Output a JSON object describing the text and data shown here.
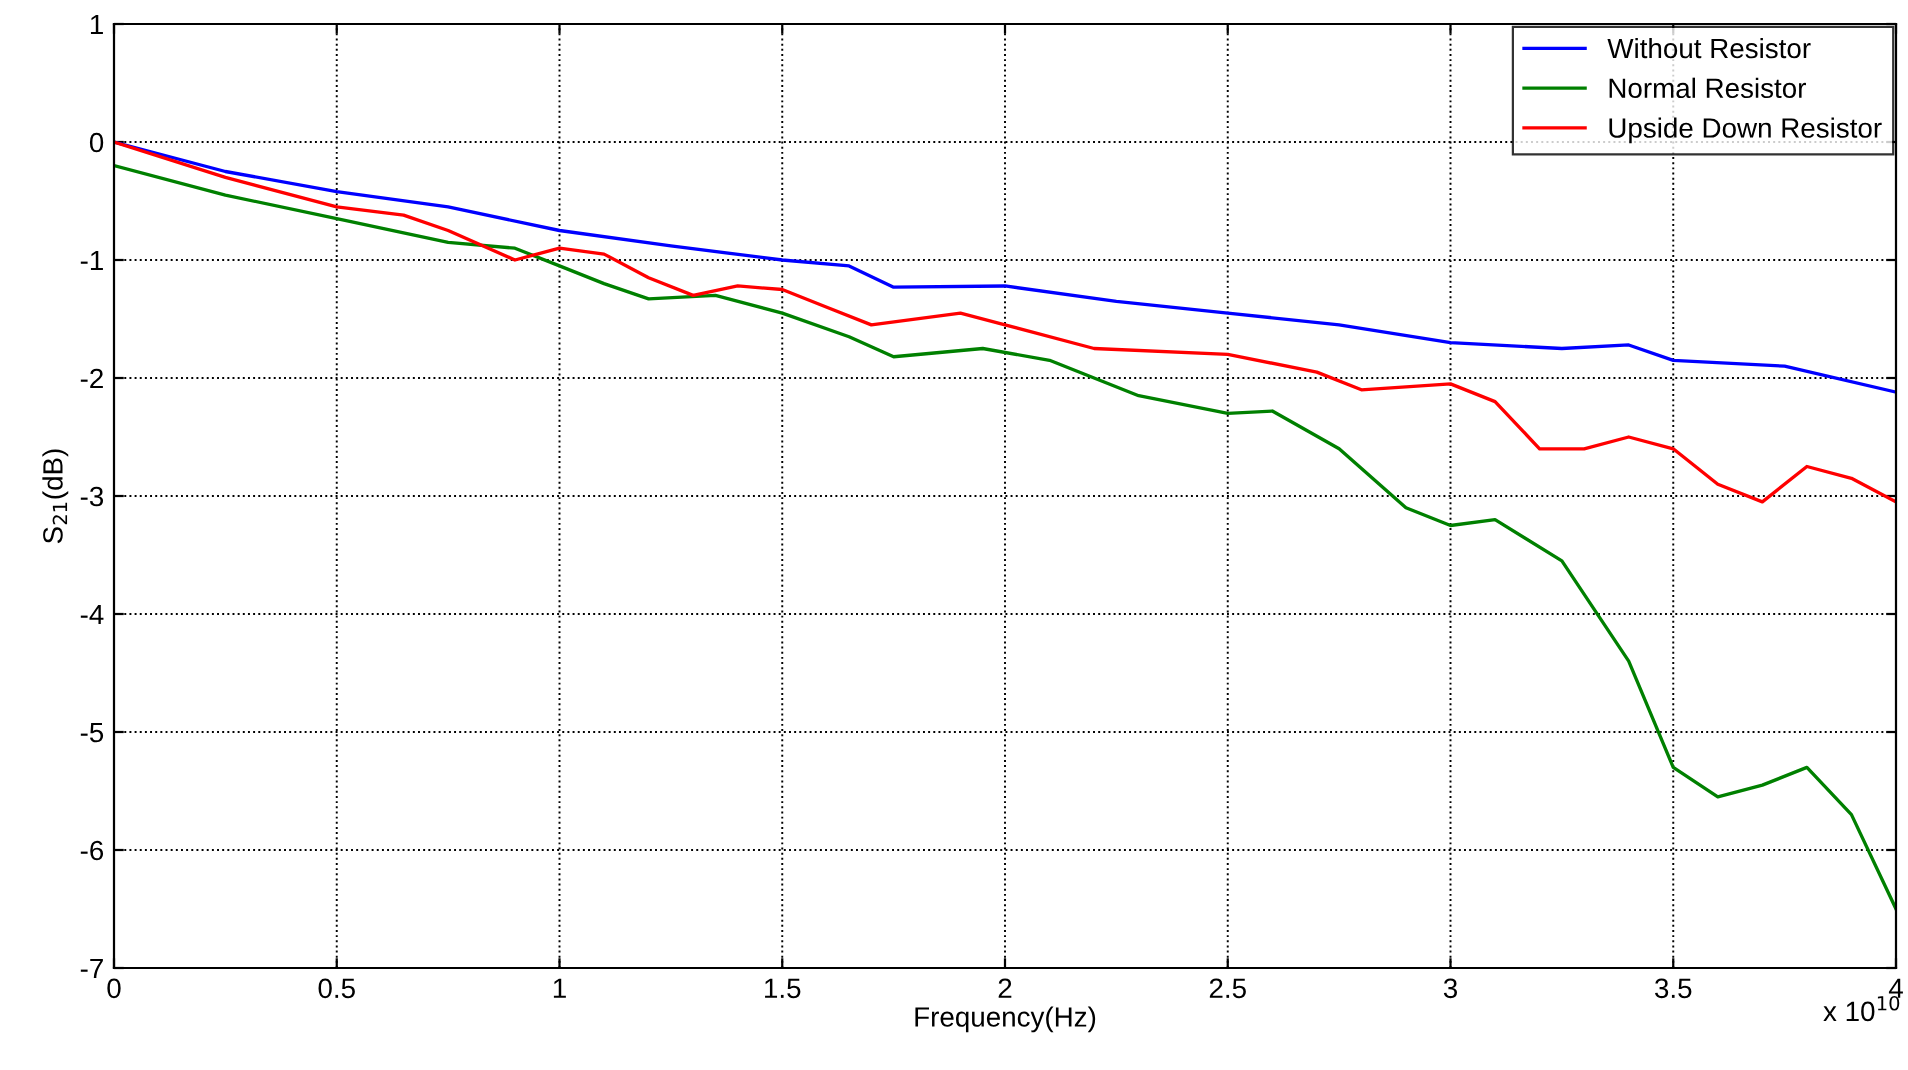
{
  "chart_data": {
    "type": "line",
    "xlabel": "Frequency(Hz)",
    "ylabel": "S$_{21}$(dB)",
    "annotations": [
      "x 10$^{10}$"
    ],
    "xlim": [
      0,
      4
    ],
    "xticks": [
      0,
      0.5,
      1,
      1.5,
      2,
      2.5,
      3,
      3.5,
      4
    ],
    "ylim": [
      -7,
      1
    ],
    "yticks": [
      -7,
      -6,
      -5,
      -4,
      -3,
      -2,
      -1,
      0,
      1
    ],
    "grid": true,
    "legend": "top right",
    "line_style": "solid",
    "marker": "none",
    "series": [
      {
        "name": "Without Resistor",
        "color": "#0000ff",
        "x": [
          0,
          0.25,
          0.5,
          0.75,
          1.0,
          1.25,
          1.5,
          1.65,
          1.75,
          2.0,
          2.25,
          2.5,
          2.75,
          3.0,
          3.25,
          3.4,
          3.5,
          3.75,
          4.0
        ],
        "values": [
          0,
          -0.25,
          -0.42,
          -0.55,
          -0.75,
          -0.88,
          -1.0,
          -1.05,
          -1.23,
          -1.22,
          -1.35,
          -1.45,
          -1.55,
          -1.7,
          -1.75,
          -1.72,
          -1.85,
          -1.9,
          -2.12
        ]
      },
      {
        "name": "Normal Resistor",
        "color": "#008000",
        "x": [
          0,
          0.25,
          0.5,
          0.75,
          0.9,
          1.0,
          1.1,
          1.2,
          1.35,
          1.5,
          1.65,
          1.75,
          1.95,
          2.1,
          2.3,
          2.5,
          2.6,
          2.75,
          2.9,
          3.0,
          3.1,
          3.25,
          3.4,
          3.5,
          3.6,
          3.7,
          3.8,
          3.9,
          4.0
        ],
        "values": [
          -0.2,
          -0.45,
          -0.65,
          -0.85,
          -0.9,
          -1.05,
          -1.2,
          -1.33,
          -1.3,
          -1.45,
          -1.65,
          -1.82,
          -1.75,
          -1.85,
          -2.15,
          -2.3,
          -2.28,
          -2.6,
          -3.1,
          -3.25,
          -3.2,
          -3.55,
          -4.4,
          -5.3,
          -5.55,
          -5.45,
          -5.3,
          -5.7,
          -6.5
        ]
      },
      {
        "name": "Upside Down Resistor",
        "color": "#ff0000",
        "x": [
          0,
          0.25,
          0.5,
          0.65,
          0.75,
          0.9,
          1.0,
          1.1,
          1.2,
          1.3,
          1.4,
          1.5,
          1.6,
          1.7,
          1.9,
          2.0,
          2.2,
          2.5,
          2.7,
          2.8,
          3.0,
          3.1,
          3.2,
          3.3,
          3.4,
          3.5,
          3.6,
          3.7,
          3.8,
          3.9,
          4.0
        ],
        "values": [
          0,
          -0.3,
          -0.55,
          -0.62,
          -0.75,
          -1.0,
          -0.9,
          -0.95,
          -1.15,
          -1.3,
          -1.22,
          -1.25,
          -1.4,
          -1.55,
          -1.45,
          -1.55,
          -1.75,
          -1.8,
          -1.95,
          -2.1,
          -2.05,
          -2.2,
          -2.6,
          -2.6,
          -2.5,
          -2.6,
          -2.9,
          -3.05,
          -2.75,
          -2.85,
          -3.05
        ]
      }
    ]
  }
}
